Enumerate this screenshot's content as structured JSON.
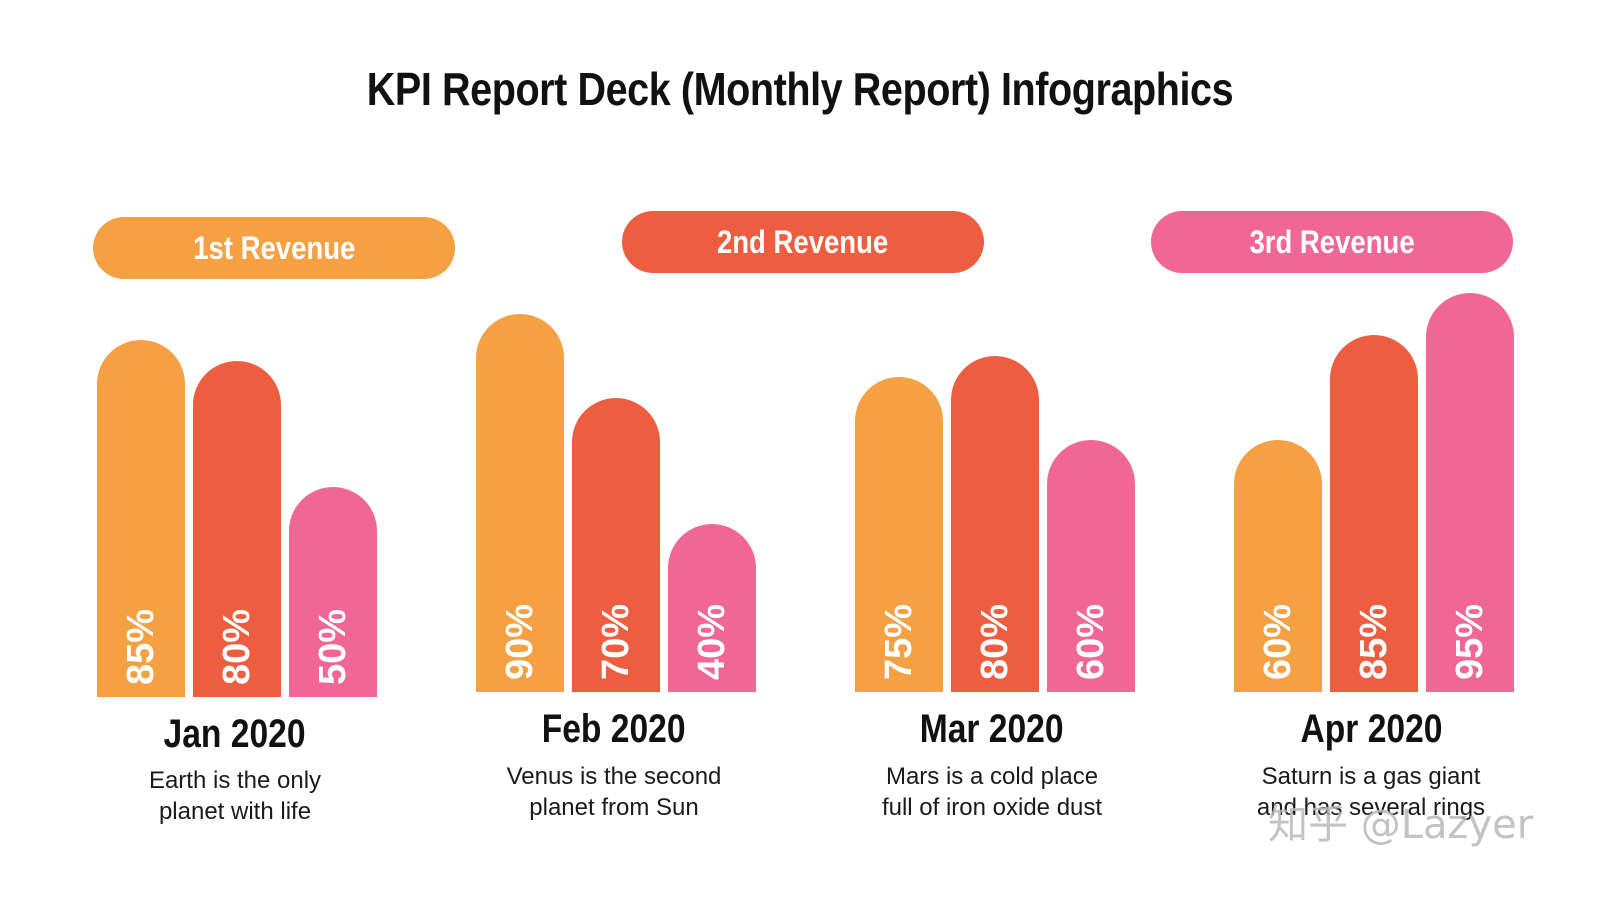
{
  "title": "KPI Report Deck (Monthly Report) Infographics",
  "colors": {
    "series1": "#F4A043",
    "series2": "#EC5E3F",
    "series3": "#F06796"
  },
  "legend": [
    "1st Revenue",
    "2nd Revenue",
    "3rd Revenue"
  ],
  "chart_data": {
    "type": "bar",
    "title": "KPI Report Deck (Monthly Report) Infographics",
    "categories": [
      "Jan 2020",
      "Feb 2020",
      "Mar 2020",
      "Apr 2020"
    ],
    "series": [
      {
        "name": "1st Revenue",
        "values": [
          85,
          90,
          75,
          60
        ],
        "labels": [
          "85%",
          "90%",
          "75%",
          "60%"
        ]
      },
      {
        "name": "2nd Revenue",
        "values": [
          80,
          70,
          80,
          85
        ],
        "labels": [
          "80%",
          "70%",
          "80%",
          "85%"
        ]
      },
      {
        "name": "3rd Revenue",
        "values": [
          50,
          40,
          60,
          95
        ],
        "labels": [
          "50%",
          "40%",
          "60%",
          "95%"
        ]
      }
    ],
    "ylim": [
      0,
      100
    ],
    "grid": false,
    "legend_position": "top"
  },
  "months": [
    {
      "label": "Jan 2020",
      "desc_line1": "Earth is the only",
      "desc_line2": "planet with life"
    },
    {
      "label": "Feb 2020",
      "desc_line1": "Venus is the second",
      "desc_line2": "planet from Sun"
    },
    {
      "label": "Mar 2020",
      "desc_line1": "Mars is a cold place",
      "desc_line2": "full of iron oxide dust"
    },
    {
      "label": "Apr 2020",
      "desc_line1": "Saturn is a gas giant",
      "desc_line2": "and has several rings"
    }
  ],
  "watermark": "知乎 @Lazyer"
}
